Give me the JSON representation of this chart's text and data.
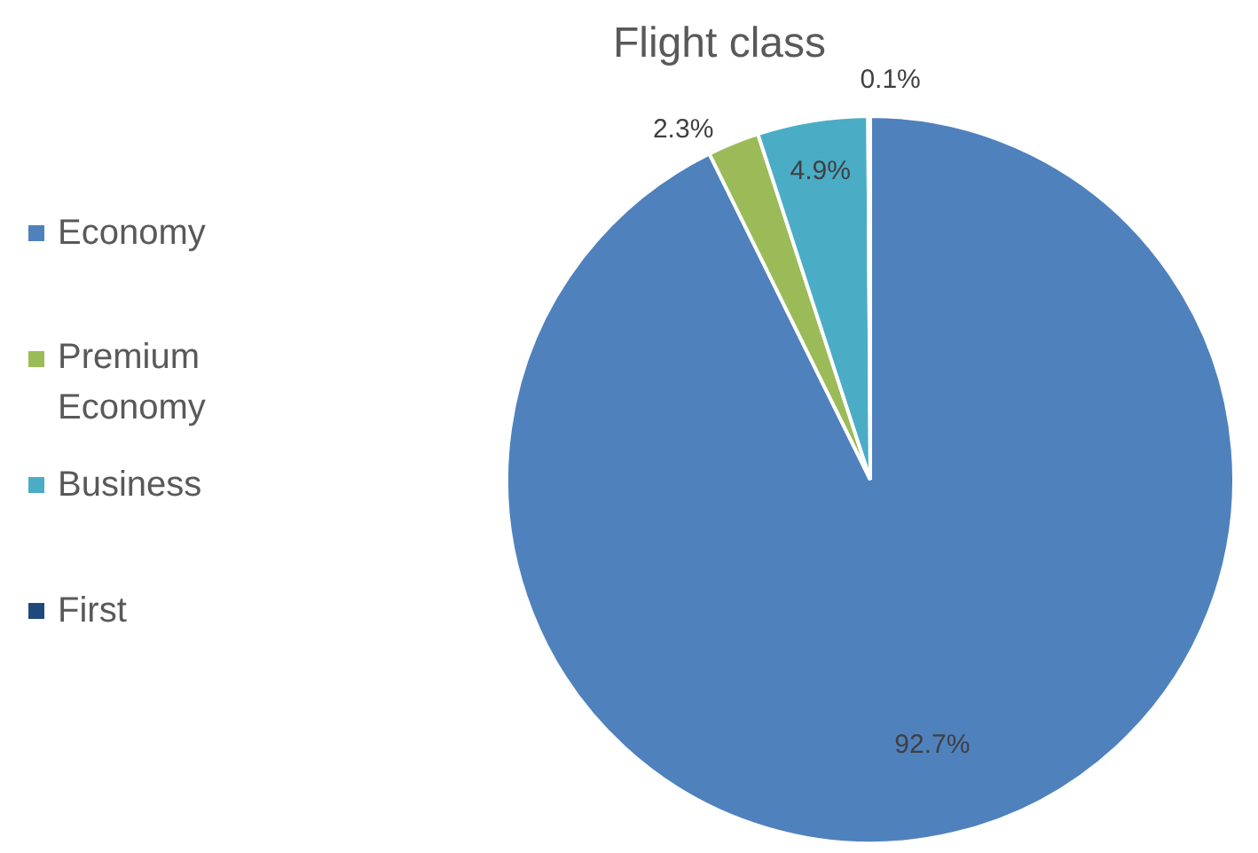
{
  "chart_data": {
    "type": "pie",
    "title": "Flight class",
    "categories": [
      "Economy",
      "Premium Economy",
      "Business",
      "First"
    ],
    "values": [
      92.7,
      2.3,
      4.9,
      0.1
    ],
    "colors": [
      "#4f81bd",
      "#9bbb59",
      "#4bacc6",
      "#1f497d"
    ],
    "value_labels": [
      "92.7%",
      "2.3%",
      "4.9%",
      "0.1%"
    ],
    "legend": "left"
  }
}
